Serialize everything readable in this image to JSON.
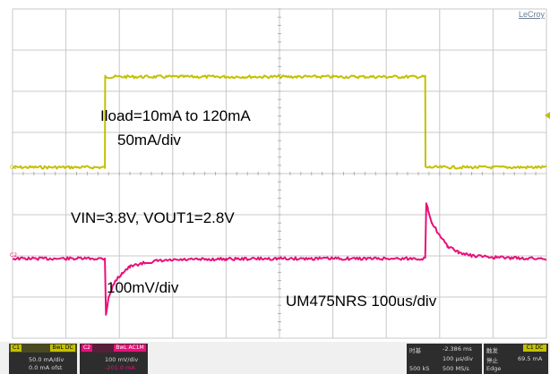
{
  "brand": "LeCroy",
  "annotations": {
    "iload": "Iload=10mA to 120mA",
    "iload_scale": "50mA/div",
    "vin_vout": "VIN=3.8V, VOUT1=2.8V",
    "v_scale": "100mV/div",
    "part_timebase": "UM475NRS 100us/div"
  },
  "channel_tags": {
    "c1": "C1",
    "c2": "C2"
  },
  "colors": {
    "c1_trace": "#c4c000",
    "c2_trace": "#e8107a",
    "grid": "#c8c8c8"
  },
  "chart_data": {
    "type": "line",
    "title": "",
    "xlabel": "",
    "ylabel": "",
    "grid": true,
    "x_divisions": 10,
    "y_divisions": 8,
    "x_unit": "us",
    "xlim": [
      0,
      1000
    ],
    "series": [
      {
        "name": "C1",
        "unit": "mA",
        "x": [
          0,
          173,
          173.5,
          190,
          600,
          773,
          773.5,
          1000
        ],
        "y": [
          10,
          10,
          120,
          120,
          120,
          120,
          10,
          10
        ]
      },
      {
        "name": "C2",
        "unit": "mV",
        "x": [
          0,
          173,
          175,
          180,
          190,
          205,
          220,
          240,
          270,
          320,
          400,
          500,
          600,
          773,
          775,
          778,
          785,
          800,
          815,
          835,
          860,
          900,
          950,
          1000
        ],
        "y": [
          0,
          0,
          -135,
          -95,
          -60,
          -35,
          -20,
          -12,
          -6,
          -3,
          -1,
          0,
          0,
          0,
          135,
          120,
          90,
          55,
          30,
          15,
          7,
          3,
          1,
          0
        ]
      }
    ]
  },
  "readout": {
    "c1": {
      "label": "C1",
      "mode": "BwL DC",
      "scale": "50.0 mA/div",
      "offset": "0.0 mA ofst"
    },
    "c2": {
      "label": "C2",
      "mode": "BwL AC1M",
      "scale": "100 mV/div",
      "offset": "-201.0 mA"
    },
    "timebase": {
      "label": "时基",
      "delay": "-2.386 ms",
      "per_div": "100 μs/div",
      "samples": "500 kS",
      "rate": "500 MS/s"
    },
    "trigger": {
      "label": "触发",
      "mode": "停止",
      "level": "69.5 mA",
      "type": "Edge",
      "badge": "C1 DC"
    }
  }
}
